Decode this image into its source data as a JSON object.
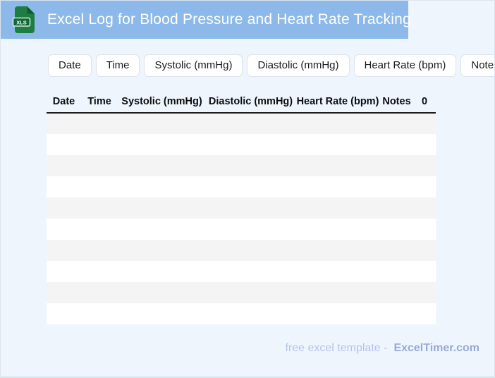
{
  "page": {
    "background_color": "#eef5fd",
    "frame_border_color": "#dce4ef"
  },
  "header": {
    "title": "Excel Log for Blood Pressure and Heart Rate Tracking",
    "background_color": "#8cb9e9",
    "title_color": "#ffffff",
    "icon": {
      "name": "xls-file-icon",
      "label": "XLS",
      "file_color": "#1e7e42",
      "fold_color": "#0d5c30",
      "badge_color": "#0b6b34",
      "badge_text_color": "#ffffff"
    }
  },
  "chips": [
    "Date",
    "Time",
    "Systolic (mmHg)",
    "Diastolic (mmHg)",
    "Heart Rate (bpm)",
    "Notes"
  ],
  "table": {
    "columns": [
      "Date",
      "Time",
      "Systolic (mmHg)",
      "Diastolic (mmHg)",
      "Heart Rate (bpm)",
      "Notes",
      "0"
    ],
    "empty_rows": 10,
    "stripe_color": "#f5f4f4",
    "header_rule_color": "#1c1c1c"
  },
  "footer": {
    "text": "free excel template -",
    "brand": "ExcelTimer.com",
    "text_color": "#b7c3ea",
    "brand_color": "#9aaad9"
  }
}
